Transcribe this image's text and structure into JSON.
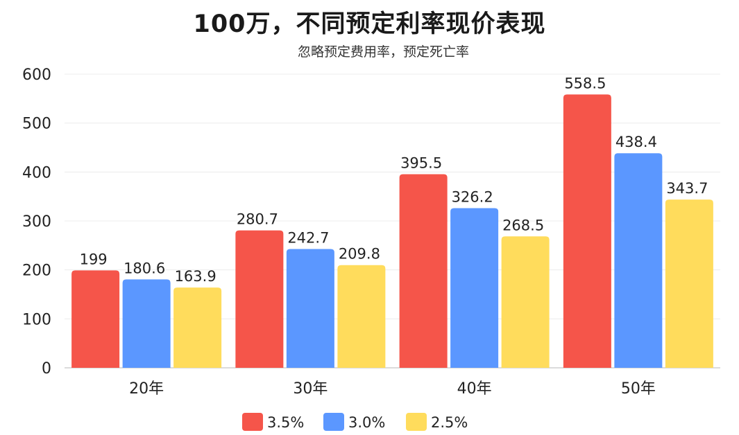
{
  "chart_data": {
    "type": "bar",
    "title": "100万，不同预定利率现价表现",
    "subtitle": "忽略预定费用率，预定死亡率",
    "categories": [
      "20年",
      "30年",
      "40年",
      "50年"
    ],
    "series": [
      {
        "name": "3.5%",
        "color": "#f5554a",
        "values": [
          199,
          280.7,
          395.5,
          558.5
        ]
      },
      {
        "name": "3.0%",
        "color": "#5b97ff",
        "values": [
          180.6,
          242.7,
          326.2,
          438.4
        ]
      },
      {
        "name": "2.5%",
        "color": "#ffdc5c",
        "values": [
          163.9,
          209.8,
          268.5,
          343.7
        ]
      }
    ],
    "data_labels": [
      [
        "199",
        "280.7",
        "395.5",
        "558.5"
      ],
      [
        "180.6",
        "242.7",
        "326.2",
        "438.4"
      ],
      [
        "163.9",
        "209.8",
        "268.5",
        "343.7"
      ]
    ],
    "yticks": [
      0,
      100,
      200,
      300,
      400,
      500,
      600
    ],
    "ylim": [
      0,
      600
    ],
    "grid": true,
    "legend": "bottom-center"
  }
}
